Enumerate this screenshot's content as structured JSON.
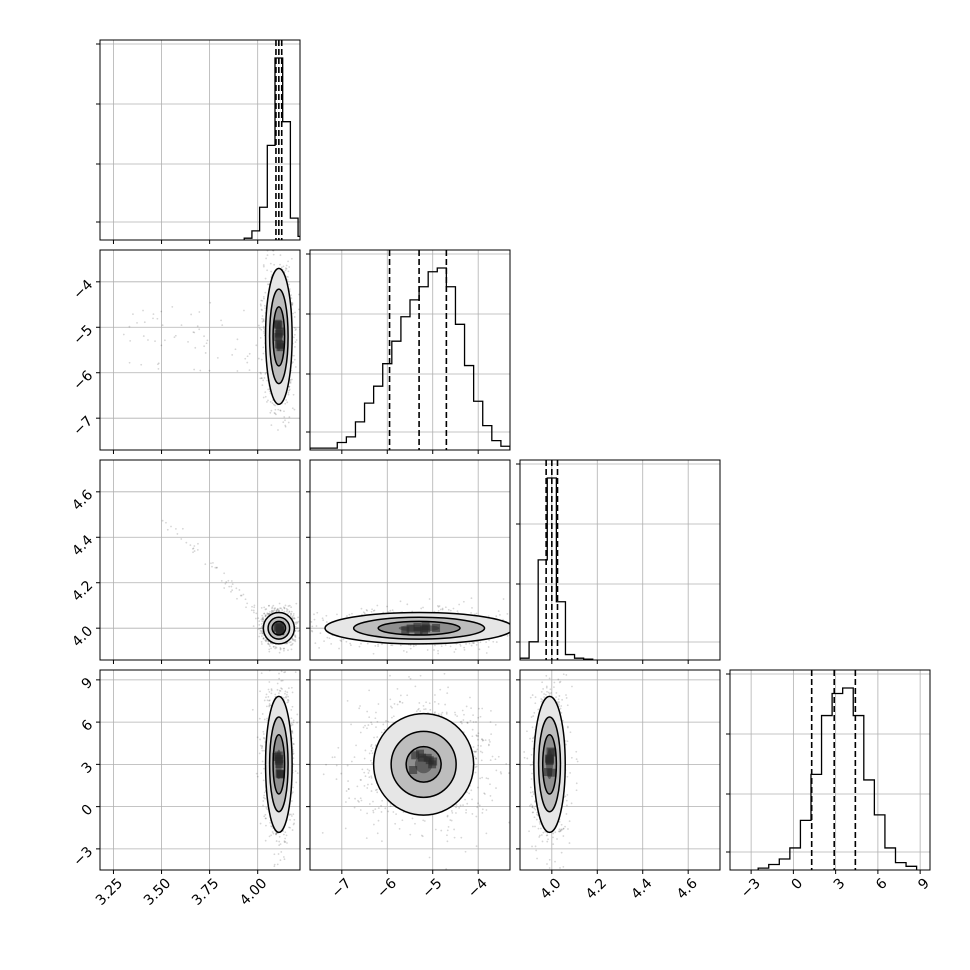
{
  "chart_data": {
    "type": "corner",
    "description": "Corner plot of a 4-parameter posterior: 1D marginal histograms on the diagonal with dashed 16/50/84 percentile lines, 2D density contours off-diagonal.",
    "params": [
      {
        "range": [
          3.18,
          4.22
        ],
        "ticks": [
          3.25,
          3.5,
          3.75,
          4.0
        ],
        "tick_labels": [
          "3.25",
          "3.50",
          "3.75",
          "4.00"
        ],
        "median": 4.11,
        "quantiles": [
          4.095,
          4.11,
          4.125
        ],
        "hist_bins": [
          3.93,
          3.97,
          4.01,
          4.05,
          4.09,
          4.13,
          4.17,
          4.21,
          4.25
        ],
        "hist_counts": [
          0.01,
          0.05,
          0.18,
          0.52,
          1.0,
          0.65,
          0.12,
          0.02
        ]
      },
      {
        "range": [
          -7.7,
          -3.3
        ],
        "ticks": [
          -7,
          -6,
          -5,
          -4
        ],
        "tick_labels": [
          "−7",
          "−6",
          "−5",
          "−4"
        ],
        "median": -5.3,
        "quantiles": [
          -5.95,
          -5.3,
          -4.7
        ],
        "hist_bins": [
          -7.7,
          -7.5,
          -7.3,
          -7.1,
          -6.9,
          -6.7,
          -6.5,
          -6.3,
          -6.1,
          -5.9,
          -5.7,
          -5.5,
          -5.3,
          -5.1,
          -4.9,
          -4.7,
          -4.5,
          -4.3,
          -4.1,
          -3.9,
          -3.7,
          -3.5,
          -3.3
        ],
        "hist_counts": [
          0.01,
          0.01,
          0.01,
          0.04,
          0.07,
          0.15,
          0.25,
          0.34,
          0.46,
          0.58,
          0.71,
          0.8,
          0.87,
          0.95,
          0.97,
          0.87,
          0.67,
          0.45,
          0.26,
          0.13,
          0.05,
          0.02
        ]
      },
      {
        "range": [
          3.86,
          4.74
        ],
        "ticks": [
          4.0,
          4.2,
          4.4,
          4.6
        ],
        "tick_labels": [
          "4.0",
          "4.2",
          "4.4",
          "4.6"
        ],
        "median": 4.0,
        "quantiles": [
          3.975,
          4.0,
          4.025
        ],
        "hist_bins": [
          3.86,
          3.9,
          3.94,
          3.98,
          4.02,
          4.06,
          4.1,
          4.14,
          4.18
        ],
        "hist_counts": [
          0.01,
          0.1,
          0.55,
          1.0,
          0.32,
          0.03,
          0.01,
          0.005
        ]
      },
      {
        "range": [
          -4.5,
          9.7
        ],
        "ticks": [
          -3,
          0,
          3,
          6,
          9
        ],
        "tick_labels": [
          "−3",
          "0",
          "3",
          "6",
          "9"
        ],
        "median": 2.9,
        "quantiles": [
          1.3,
          2.9,
          4.4
        ],
        "hist_bins": [
          -2.5,
          -1.75,
          -1.0,
          -0.25,
          0.5,
          1.25,
          2.0,
          2.75,
          3.5,
          4.25,
          5.0,
          5.75,
          6.5,
          7.25,
          8.0,
          8.75
        ],
        "hist_counts": [
          0.01,
          0.03,
          0.06,
          0.12,
          0.27,
          0.52,
          0.84,
          0.96,
          0.99,
          0.84,
          0.49,
          0.3,
          0.12,
          0.04,
          0.02
        ]
      }
    ],
    "pairs": [
      {
        "x": 0,
        "y": 1,
        "center": [
          4.11,
          -5.2
        ],
        "sigma": [
          0.03,
          0.65
        ],
        "levels": [
          1.0,
          1.6,
          2.3
        ],
        "tail": "left"
      },
      {
        "x": 0,
        "y": 2,
        "center": [
          4.11,
          4.0
        ],
        "sigma": [
          0.035,
          0.03
        ],
        "levels": [
          1.0,
          1.6,
          2.3
        ],
        "tail": "diag"
      },
      {
        "x": 1,
        "y": 2,
        "center": [
          -5.3,
          4.0
        ],
        "sigma": [
          0.9,
          0.03
        ],
        "levels": [
          1.0,
          1.6,
          2.3
        ],
        "tail": "none"
      },
      {
        "x": 0,
        "y": 3,
        "center": [
          4.11,
          3.0
        ],
        "sigma": [
          0.03,
          2.1
        ],
        "levels": [
          1.0,
          1.6,
          2.3
        ],
        "tail": "none"
      },
      {
        "x": 1,
        "y": 3,
        "center": [
          -5.2,
          3.0
        ],
        "sigma": [
          0.55,
          1.8
        ],
        "levels": [
          0.7,
          1.3,
          2.0
        ],
        "tail": "none"
      },
      {
        "x": 2,
        "y": 3,
        "center": [
          3.99,
          3.0
        ],
        "sigma": [
          0.03,
          2.1
        ],
        "levels": [
          1.0,
          1.6,
          2.3
        ],
        "tail": "none"
      }
    ],
    "grid": true,
    "title": "",
    "xlabel": "",
    "ylabel": ""
  }
}
